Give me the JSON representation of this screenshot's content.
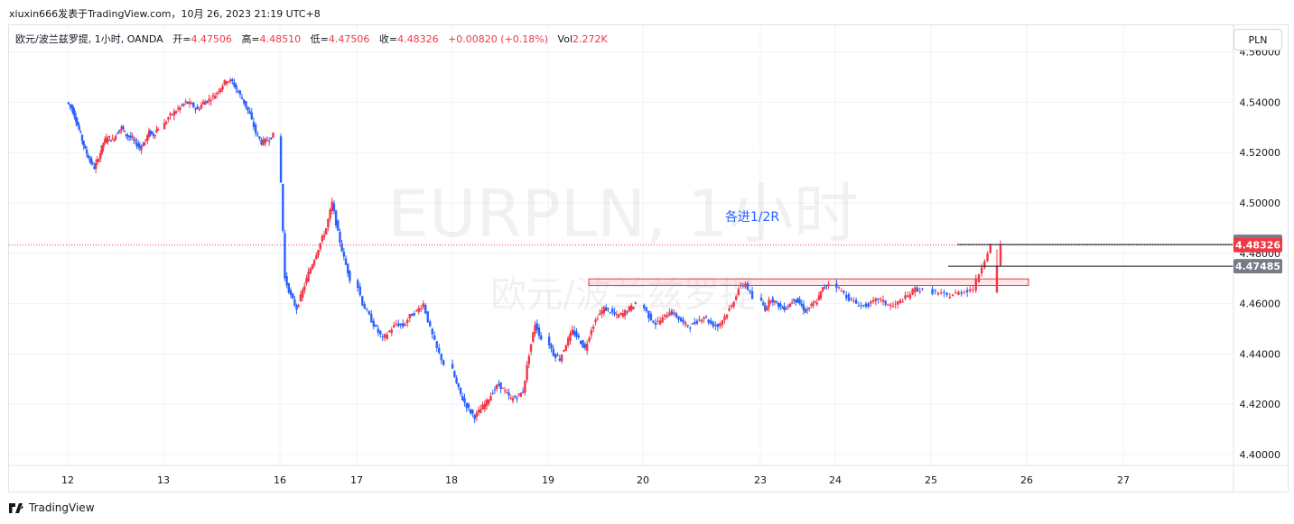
{
  "header": {
    "publisher": "xiuxin666发表于TradingView.com，10月 26, 2023 21:19 UTC+8"
  },
  "legend": {
    "symbol": "欧元/波兰兹罗提, 1小时, OANDA",
    "open_label": "开=",
    "open": "4.47506",
    "high_label": "高=",
    "high": "4.48510",
    "low_label": "低=",
    "low": "4.47506",
    "close_label": "收=",
    "close": "4.48326",
    "change": "+0.00820 (+0.18%)",
    "vol_label": "Vol",
    "vol": "2.272K"
  },
  "currency_button": "PLN",
  "watermark": {
    "line1": "EURPLN, 1小时",
    "line2": "欧元/波兰兹罗提"
  },
  "annotation": "各进1/2R",
  "price_tags": [
    {
      "value": "4.48345",
      "color": "#787b86"
    },
    {
      "value": "4.48326",
      "color": "#f23645"
    },
    {
      "value": "4.47485",
      "color": "#787b86"
    }
  ],
  "brand": "TradingView",
  "colors": {
    "up": "#f23645",
    "down": "#2962ff",
    "grid": "#f0f3fa"
  },
  "chart_data": {
    "type": "candlestick",
    "title": "EURPLN, 1小时",
    "x_tick_labels": [
      "12",
      "13",
      "16",
      "17",
      "18",
      "19",
      "20",
      "23",
      "24",
      "25",
      "26",
      "27"
    ],
    "y_tick_labels": [
      "4.40000",
      "4.42000",
      "4.44000",
      "4.46000",
      "4.48000",
      "4.50000",
      "4.52000",
      "4.54000",
      "4.56000"
    ],
    "ylim": [
      4.398,
      4.558
    ],
    "last_price": 4.48326,
    "zone": {
      "low": 4.4672,
      "high": 4.4698,
      "from_day": "19",
      "to_day": "26"
    },
    "horizontal_lines": [
      4.48345,
      4.47485
    ],
    "series": [
      {
        "name": "EURPLN",
        "segments": [
          {
            "day": "12",
            "points": [
              4.54,
              4.538,
              4.533,
              4.527,
              4.521,
              4.517,
              4.514,
              4.518,
              4.524,
              4.526,
              4.525,
              4.528,
              4.53,
              4.527,
              4.526,
              4.524,
              4.522,
              4.524,
              4.528,
              4.527,
              4.53
            ]
          },
          {
            "day": "13",
            "points": [
              4.53,
              4.534,
              4.536,
              4.538,
              4.54,
              4.539,
              4.537,
              4.54,
              4.541,
              4.543,
              4.546,
              4.549,
              4.548,
              4.544,
              4.54,
              4.535,
              4.528,
              4.524,
              4.525,
              4.527
            ]
          },
          {
            "day": "16",
            "points": [
              4.527,
              4.47,
              4.463,
              4.458,
              4.465,
              4.472,
              4.478,
              4.484,
              4.49,
              4.5,
              4.488,
              4.478,
              4.47
            ]
          },
          {
            "day": "17",
            "points": [
              4.47,
              4.46,
              4.455,
              4.45,
              4.446,
              4.449,
              4.452,
              4.451,
              4.455,
              4.457,
              4.46,
              4.45,
              4.442,
              4.436
            ]
          },
          {
            "day": "18",
            "points": [
              4.436,
              4.428,
              4.422,
              4.418,
              4.415,
              4.418,
              4.421,
              4.425,
              4.428,
              4.425,
              4.422,
              4.423,
              4.425,
              4.44,
              4.452,
              4.446
            ]
          },
          {
            "day": "19",
            "points": [
              4.446,
              4.44,
              4.438,
              4.444,
              4.449,
              4.446,
              4.442,
              4.45,
              4.455,
              4.458,
              4.457,
              4.455,
              4.456,
              4.458,
              4.46
            ]
          },
          {
            "day": "20",
            "points": [
              4.46,
              4.455,
              4.452,
              4.454,
              4.457,
              4.455,
              4.452,
              4.451,
              4.453,
              4.455,
              4.452,
              4.451,
              4.455,
              4.459,
              4.466,
              4.468,
              4.462
            ]
          },
          {
            "day": "23",
            "points": [
              4.462,
              4.458,
              4.462,
              4.46,
              4.458,
              4.459,
              4.462,
              4.46,
              4.457,
              4.459,
              4.461,
              4.466,
              4.468
            ]
          },
          {
            "day": "24",
            "points": [
              4.468,
              4.465,
              4.462,
              4.46,
              4.459,
              4.46,
              4.462,
              4.46,
              4.459,
              4.461,
              4.463,
              4.466,
              4.465
            ]
          },
          {
            "day": "25",
            "points": [
              4.465,
              4.464,
              4.463,
              4.464,
              4.465,
              4.466,
              4.475,
              4.4833
            ]
          }
        ]
      }
    ],
    "grid": true
  }
}
